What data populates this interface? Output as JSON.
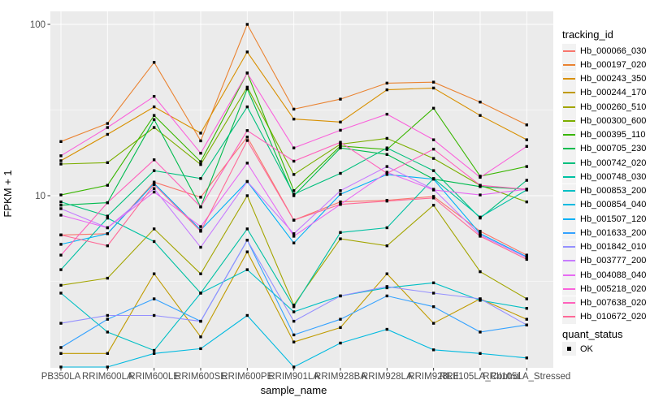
{
  "chart_data": {
    "type": "line",
    "title": "",
    "xlabel": "sample_name",
    "ylabel": "FPKM + 1",
    "y_scale": "log10",
    "y_ticks": [
      100,
      10
    ],
    "y_minor_gridlines": [
      31.62,
      3.162
    ],
    "ylim": [
      1,
      120
    ],
    "grid": true,
    "panel_color": "#EBEBEB",
    "gridline_color": "#FFFFFF",
    "marker": {
      "shape": "square",
      "color": "#000000"
    },
    "legend_position": "right",
    "categories": [
      "PB350LA",
      "RRIM600LA",
      "RRIM600LE",
      "RRIM600SE",
      "RRIM600PE",
      "RRIM901LA",
      "RRIM928BA",
      "RRIM928LA",
      "RRIM928LE",
      "RRII105LA_Control",
      "RRII105LA_Stressed"
    ],
    "series": [
      {
        "name": "Hb_000066_030",
        "color": "#F8766D",
        "values": [
          5.9,
          6.0,
          12.0,
          9.8,
          22,
          7.2,
          9.2,
          9.4,
          9.9,
          6.2,
          4.5
        ]
      },
      {
        "name": "Hb_000197_020",
        "color": "#EA8331",
        "values": [
          20.7,
          26.4,
          60,
          20.9,
          100,
          32,
          36.6,
          45.4,
          46,
          35.2,
          25.9
        ]
      },
      {
        "name": "Hb_000243_350",
        "color": "#D89000",
        "values": [
          16,
          22.8,
          33,
          23.2,
          69,
          28,
          26.9,
          41.5,
          42.5,
          29.4,
          21.2
        ]
      },
      {
        "name": "Hb_000244_170",
        "color": "#C09B00",
        "values": [
          1.2,
          1.2,
          3.5,
          1.5,
          4.7,
          1.4,
          1.7,
          3.5,
          1.8,
          2.5,
          1.9
        ]
      },
      {
        "name": "Hb_000260_510",
        "color": "#A3A500",
        "values": [
          3.0,
          3.3,
          6.4,
          3.5,
          10,
          2.3,
          5.6,
          5.1,
          8.8,
          3.6,
          2.5
        ]
      },
      {
        "name": "Hb_000300_600",
        "color": "#7CAE00",
        "values": [
          15.3,
          15.6,
          25,
          15.2,
          43,
          13.3,
          20,
          21.6,
          16.5,
          11.5,
          9.2
        ]
      },
      {
        "name": "Hb_000395_110",
        "color": "#39B600",
        "values": [
          10.1,
          11.5,
          29.4,
          15.8,
          52,
          10.7,
          19.5,
          18.6,
          32.4,
          13.0,
          14.8
        ]
      },
      {
        "name": "Hb_000705_230",
        "color": "#00BB4E",
        "values": [
          8.8,
          9.1,
          27.8,
          8.6,
          42,
          10.0,
          19,
          17.4,
          12.5,
          11.3,
          10.9
        ]
      },
      {
        "name": "Hb_000742_020",
        "color": "#00BF7D",
        "values": [
          9.2,
          7.6,
          14.0,
          12.6,
          33,
          10.2,
          13.5,
          19.0,
          14.0,
          7.4,
          12.3
        ]
      },
      {
        "name": "Hb_000748_030",
        "color": "#00C1A3",
        "values": [
          3.7,
          7.4,
          5.4,
          2.7,
          6.4,
          2.25,
          6.1,
          6.5,
          12.6,
          7.5,
          10.8
        ]
      },
      {
        "name": "Hb_000853_200",
        "color": "#00BFC4",
        "values": [
          2.7,
          1.6,
          1.25,
          2.7,
          3.7,
          2.1,
          2.6,
          2.9,
          3.1,
          2.45,
          2.2
        ]
      },
      {
        "name": "Hb_000854_040",
        "color": "#00BAE0",
        "values": [
          1.0,
          1.0,
          1.2,
          1.28,
          2.0,
          1.0,
          1.38,
          1.66,
          1.26,
          1.2,
          1.13
        ]
      },
      {
        "name": "Hb_001507_120",
        "color": "#00B0F6",
        "values": [
          5.2,
          6.0,
          11.8,
          6.3,
          12.1,
          5.3,
          10.2,
          13.3,
          12.5,
          6.0,
          4.4
        ]
      },
      {
        "name": "Hb_001633_200",
        "color": "#35A2FF",
        "values": [
          1.3,
          1.9,
          2.5,
          1.85,
          5.5,
          1.54,
          1.9,
          2.6,
          2.25,
          1.6,
          1.76
        ]
      },
      {
        "name": "Hb_001842_010",
        "color": "#9590FF",
        "values": [
          1.8,
          2.0,
          2.0,
          1.85,
          5.5,
          1.85,
          2.6,
          2.95,
          2.7,
          2.5,
          1.76
        ]
      },
      {
        "name": "Hb_003777_200",
        "color": "#C77CFF",
        "values": [
          8.4,
          6.5,
          11.0,
          5.0,
          12.1,
          6.0,
          10.7,
          14.8,
          10.9,
          5.9,
          4.35
        ]
      },
      {
        "name": "Hb_004088_040",
        "color": "#E76BF3",
        "values": [
          7.7,
          6.5,
          10.5,
          6.6,
          15.5,
          5.8,
          8.9,
          13.7,
          10.8,
          10.1,
          10.9
        ]
      },
      {
        "name": "Hb_005218_020",
        "color": "#FA62DB",
        "values": [
          17.1,
          25,
          38,
          17.7,
          52,
          19,
          24.1,
          29.9,
          21.2,
          12.8,
          19.4
        ]
      },
      {
        "name": "Hb_007638_020",
        "color": "#FF62BC",
        "values": [
          4.5,
          9.1,
          16.2,
          8.6,
          24,
          15.9,
          20.5,
          13.5,
          18.7,
          11.5,
          10.9
        ]
      },
      {
        "name": "Hb_010672_020",
        "color": "#FF6A98",
        "values": [
          5.9,
          5.1,
          11.6,
          6.2,
          21,
          7.2,
          8.9,
          9.3,
          9.7,
          5.8,
          4.25
        ]
      }
    ]
  },
  "legend": {
    "tracking_title": "tracking_id",
    "quant_title": "quant_status",
    "quant_items": [
      {
        "label": "OK"
      }
    ]
  }
}
